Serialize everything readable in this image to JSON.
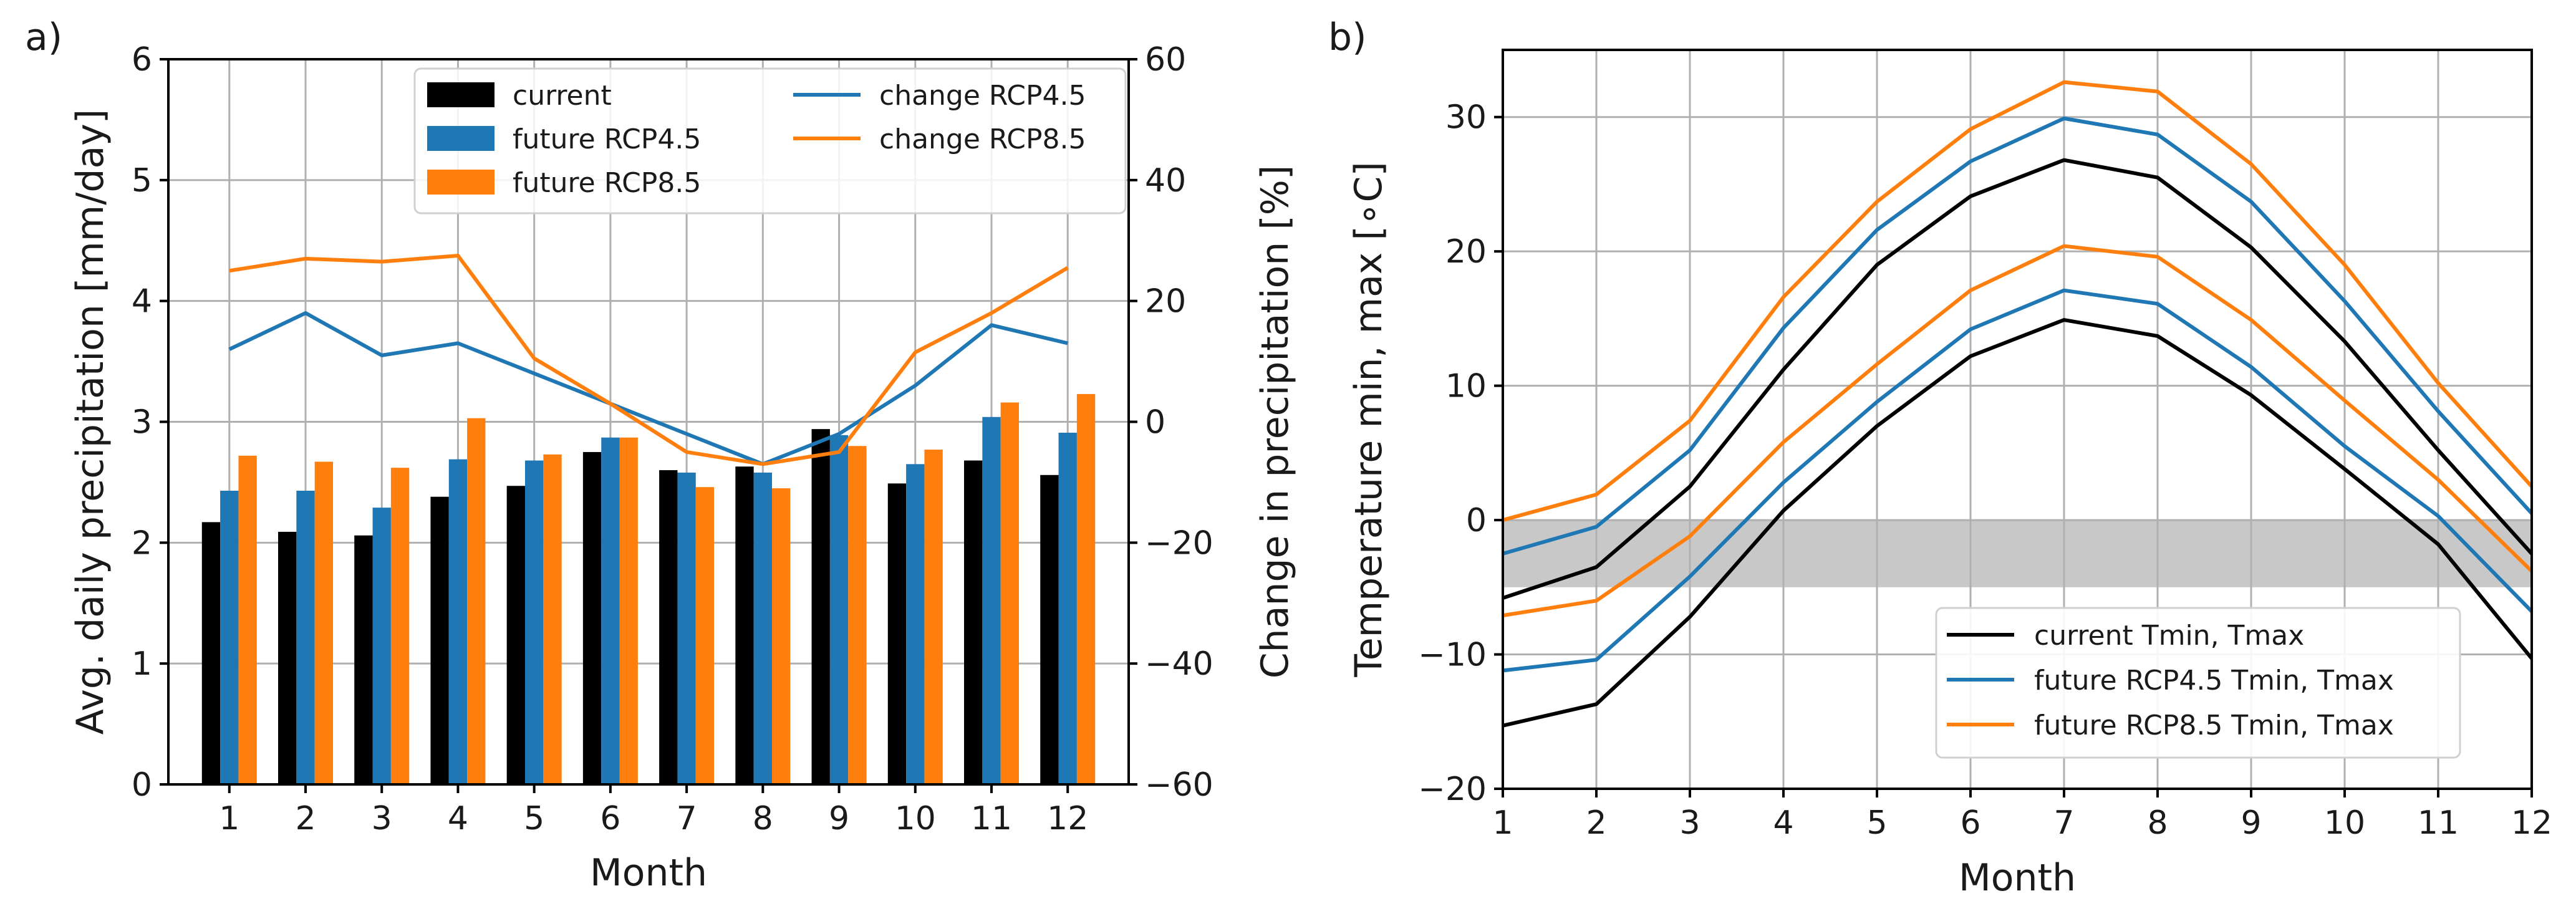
{
  "colors": {
    "current": "#000000",
    "rcp45": "#1f77b4",
    "rcp85": "#ff7f0e",
    "freeze_band": "#c8c8c8"
  },
  "chart_data": [
    {
      "panel": "a)",
      "type": "bar",
      "categories": [
        "1",
        "2",
        "3",
        "4",
        "5",
        "6",
        "7",
        "8",
        "9",
        "10",
        "11",
        "12"
      ],
      "xlabel": "Month",
      "ylabel": "Avg. daily precipitation [mm/day]",
      "ylim": [
        0,
        6
      ],
      "yticks": [
        "0",
        "1",
        "2",
        "3",
        "4",
        "5",
        "6"
      ],
      "y2label": "Change in precipitation [%]",
      "y2lim": [
        -60,
        60
      ],
      "y2ticks": [
        "−60",
        "−40",
        "−20",
        "0",
        "20",
        "40",
        "60"
      ],
      "grid": true,
      "legend_position": "top-center",
      "series": [
        {
          "name": "current",
          "kind": "bar",
          "axis": "left",
          "color": "#000000",
          "values": [
            2.17,
            2.09,
            2.06,
            2.38,
            2.47,
            2.75,
            2.6,
            2.63,
            2.94,
            2.49,
            2.68,
            2.56
          ]
        },
        {
          "name": "future RCP4.5",
          "kind": "bar",
          "axis": "left",
          "color": "#1f77b4",
          "values": [
            2.43,
            2.43,
            2.29,
            2.69,
            2.68,
            2.87,
            2.58,
            2.58,
            2.89,
            2.65,
            3.04,
            2.91
          ]
        },
        {
          "name": "future RCP8.5",
          "kind": "bar",
          "axis": "left",
          "color": "#ff7f0e",
          "values": [
            2.72,
            2.67,
            2.62,
            3.03,
            2.73,
            2.87,
            2.46,
            2.45,
            2.8,
            2.77,
            3.16,
            3.23
          ]
        },
        {
          "name": "change RCP4.5",
          "kind": "line",
          "axis": "right",
          "color": "#1f77b4",
          "values": [
            12,
            18,
            11,
            13,
            8,
            3,
            -2,
            -7,
            -2,
            6,
            16,
            13
          ]
        },
        {
          "name": "change RCP8.5",
          "kind": "line",
          "axis": "right",
          "color": "#ff7f0e",
          "values": [
            25,
            27,
            26.5,
            27.5,
            10.5,
            3,
            -5,
            -7,
            -5,
            11.5,
            18,
            25.5
          ]
        }
      ]
    },
    {
      "panel": "b)",
      "type": "line",
      "x": [
        1,
        2,
        3,
        4,
        5,
        6,
        7,
        8,
        9,
        10,
        11,
        12
      ],
      "xticks": [
        "1",
        "2",
        "3",
        "4",
        "5",
        "6",
        "7",
        "8",
        "9",
        "10",
        "11",
        "12"
      ],
      "xlabel": "Month",
      "ylabel": "Temperature min, max [∘C]",
      "ylim": [
        -20,
        35
      ],
      "yticks": [
        "−20",
        "−10",
        "0",
        "10",
        "20",
        "30"
      ],
      "grid": true,
      "legend_position": "lower-center",
      "shaded_band": [
        -5,
        0
      ],
      "legend": [
        {
          "name": "current Tmin, Tmax",
          "color": "#000000"
        },
        {
          "name": "future RCP4.5 Tmin, Tmax",
          "color": "#1f77b4"
        },
        {
          "name": "future RCP8.5 Tmin, Tmax",
          "color": "#ff7f0e"
        }
      ],
      "series": [
        {
          "name": "current Tmin",
          "color": "#000000",
          "values": [
            -15.3,
            -13.7,
            -7.2,
            0.7,
            7.0,
            12.2,
            14.9,
            13.7,
            9.3,
            3.8,
            -1.8,
            -10.3
          ]
        },
        {
          "name": "current Tmax",
          "color": "#000000",
          "values": [
            -5.8,
            -3.5,
            2.5,
            11.2,
            19.0,
            24.1,
            26.8,
            25.5,
            20.3,
            13.3,
            5.2,
            -2.5
          ]
        },
        {
          "name": "future RCP4.5 Tmin",
          "color": "#1f77b4",
          "values": [
            -11.2,
            -10.4,
            -4.2,
            2.8,
            8.8,
            14.2,
            17.1,
            16.1,
            11.4,
            5.5,
            0.3,
            -6.8
          ]
        },
        {
          "name": "future RCP4.5 Tmax",
          "color": "#1f77b4",
          "values": [
            -2.5,
            -0.5,
            5.2,
            14.3,
            21.6,
            26.7,
            29.9,
            28.7,
            23.7,
            16.3,
            8.1,
            0.5
          ]
        },
        {
          "name": "future RCP8.5 Tmin",
          "color": "#ff7f0e",
          "values": [
            -7.1,
            -6.0,
            -1.2,
            5.8,
            11.6,
            17.1,
            20.4,
            19.6,
            14.9,
            8.9,
            3.0,
            -3.8
          ]
        },
        {
          "name": "future RCP8.5 Tmax",
          "color": "#ff7f0e",
          "values": [
            0.0,
            1.9,
            7.4,
            16.6,
            23.7,
            29.1,
            32.6,
            31.9,
            26.5,
            19.0,
            10.2,
            2.5
          ]
        }
      ]
    }
  ]
}
